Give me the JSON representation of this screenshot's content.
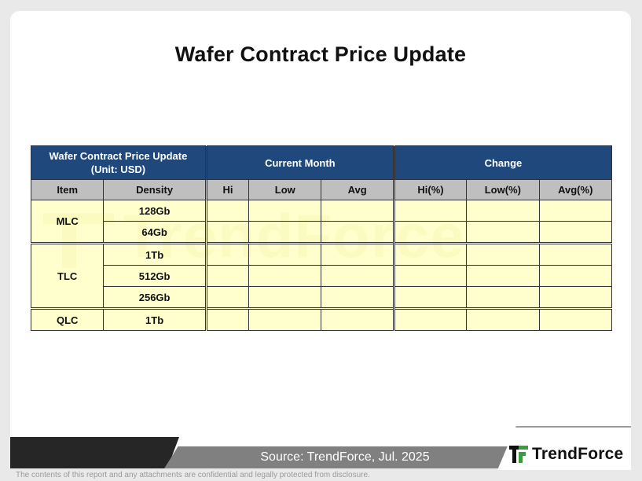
{
  "page": {
    "title": "Wafer Contract Price Update",
    "watermark": "TrendForce"
  },
  "table": {
    "corner_line1": "Wafer Contract Price Update",
    "corner_line2": "(Unit: USD)",
    "group_current": "Current Month",
    "group_change": "Change",
    "columns": [
      "Item",
      "Density",
      "Hi",
      "Low",
      "Avg",
      "Hi(%)",
      "Low(%)",
      "Avg(%)"
    ],
    "groups": [
      {
        "item": "MLC",
        "densities": [
          "128Gb",
          "64Gb"
        ]
      },
      {
        "item": "TLC",
        "densities": [
          "1Tb",
          "512Gb",
          "256Gb"
        ]
      },
      {
        "item": "QLC",
        "densities": [
          "1Tb"
        ]
      }
    ]
  },
  "footer": {
    "source": "Source: TrendForce, Jul. 2025",
    "brand": "TrendForce",
    "disclaimer": "The contents of this report and any attachments are confidential and legally protected from disclosure."
  },
  "colors": {
    "header_blue": "#1f497d",
    "subheader_gray": "#bfbfbf",
    "cell_yellow": "#ffffc2",
    "logo_green": "#3a9b3f"
  }
}
